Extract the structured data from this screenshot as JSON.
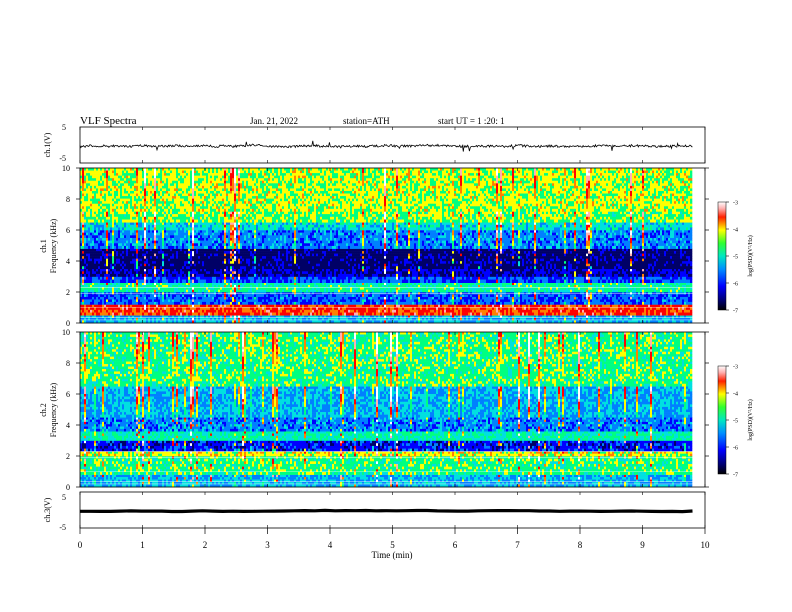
{
  "header": {
    "title": "VLF  Spectra",
    "date": "Jan. 21, 2022",
    "station": "station=ATH",
    "start": "start  UT  =   1  :20: 1"
  },
  "colors": {
    "colormap": [
      "#000066",
      "#0000ff",
      "#0080ff",
      "#00e0e0",
      "#00ff80",
      "#ffff00",
      "#ff8000",
      "#ff0000",
      "#ffb0b0",
      "#ffffff"
    ],
    "trace": "#000000"
  },
  "chart_data": [
    {
      "type": "line",
      "panel": "ch1_waveform",
      "ylabel": "ch.1(V)",
      "ylim": [
        -5,
        5
      ],
      "yticks": [
        "5",
        "-5"
      ],
      "x_range": [
        0,
        9.8
      ],
      "series": [
        {
          "baseline": -0.3,
          "noise_amplitude": 0.6
        }
      ]
    },
    {
      "type": "heatmap",
      "panel": "ch1_spectrogram",
      "ylabel": "ch.1\nFrequency  (kHz)",
      "ylim": [
        0,
        10
      ],
      "yticks": [
        "0",
        "2",
        "4",
        "6",
        "8",
        "10"
      ],
      "x_range": [
        0,
        9.8
      ],
      "colorbar": {
        "label": "log(PSD)(V²/Hz)",
        "range": [
          -7,
          -3
        ],
        "ticks": [
          "-3",
          "-4",
          "-5",
          "-6",
          "-7"
        ]
      },
      "bands_khz": [
        {
          "from": 0.0,
          "to": 0.5,
          "level": 0.3
        },
        {
          "from": 0.5,
          "to": 1.2,
          "level": 0.72
        },
        {
          "from": 1.2,
          "to": 2.0,
          "level": 0.22
        },
        {
          "from": 2.0,
          "to": 2.6,
          "level": 0.42
        },
        {
          "from": 2.6,
          "to": 3.0,
          "level": 0.2
        },
        {
          "from": 3.0,
          "to": 3.5,
          "level": 0.1
        },
        {
          "from": 3.5,
          "to": 4.8,
          "level": 0.05
        },
        {
          "from": 4.8,
          "to": 6.0,
          "level": 0.25
        },
        {
          "from": 6.0,
          "to": 6.5,
          "level": 0.35
        },
        {
          "from": 6.5,
          "to": 7.2,
          "level": 0.48
        },
        {
          "from": 7.2,
          "to": 10.0,
          "level": 0.52
        }
      ]
    },
    {
      "type": "heatmap",
      "panel": "ch2_spectrogram",
      "ylabel": "ch.2\nFrequency  (kHz)",
      "ylim": [
        0,
        10
      ],
      "yticks": [
        "0",
        "2",
        "4",
        "6",
        "8",
        "10"
      ],
      "x_range": [
        0,
        9.8
      ],
      "colorbar": {
        "label": "log(PSD)(V²/Hz)",
        "range": [
          -7,
          -3
        ],
        "ticks": [
          "-3",
          "-4",
          "-5",
          "-6",
          "-7"
        ]
      },
      "bands_khz": [
        {
          "from": 0.0,
          "to": 0.8,
          "level": 0.3
        },
        {
          "from": 0.8,
          "to": 2.0,
          "level": 0.45
        },
        {
          "from": 2.0,
          "to": 2.3,
          "level": 0.55
        },
        {
          "from": 2.3,
          "to": 3.0,
          "level": 0.15
        },
        {
          "from": 3.0,
          "to": 3.6,
          "level": 0.4
        },
        {
          "from": 3.6,
          "to": 4.5,
          "level": 0.25
        },
        {
          "from": 4.5,
          "to": 6.5,
          "level": 0.3
        },
        {
          "from": 6.5,
          "to": 10.0,
          "level": 0.45
        }
      ]
    },
    {
      "type": "line",
      "panel": "ch3_waveform",
      "ylabel": "ch.3(V)",
      "ylim": [
        -5,
        5
      ],
      "yticks": [
        "5",
        "-5"
      ],
      "x_range": [
        0,
        9.8
      ],
      "series": [
        {
          "baseline": -0.3,
          "noise_amplitude": 0.1
        }
      ]
    }
  ],
  "x_axis": {
    "label": "Time  (min)",
    "ticks": [
      "0",
      "1",
      "2",
      "3",
      "4",
      "5",
      "6",
      "7",
      "8",
      "9",
      "10"
    ],
    "range": [
      0,
      10
    ]
  }
}
